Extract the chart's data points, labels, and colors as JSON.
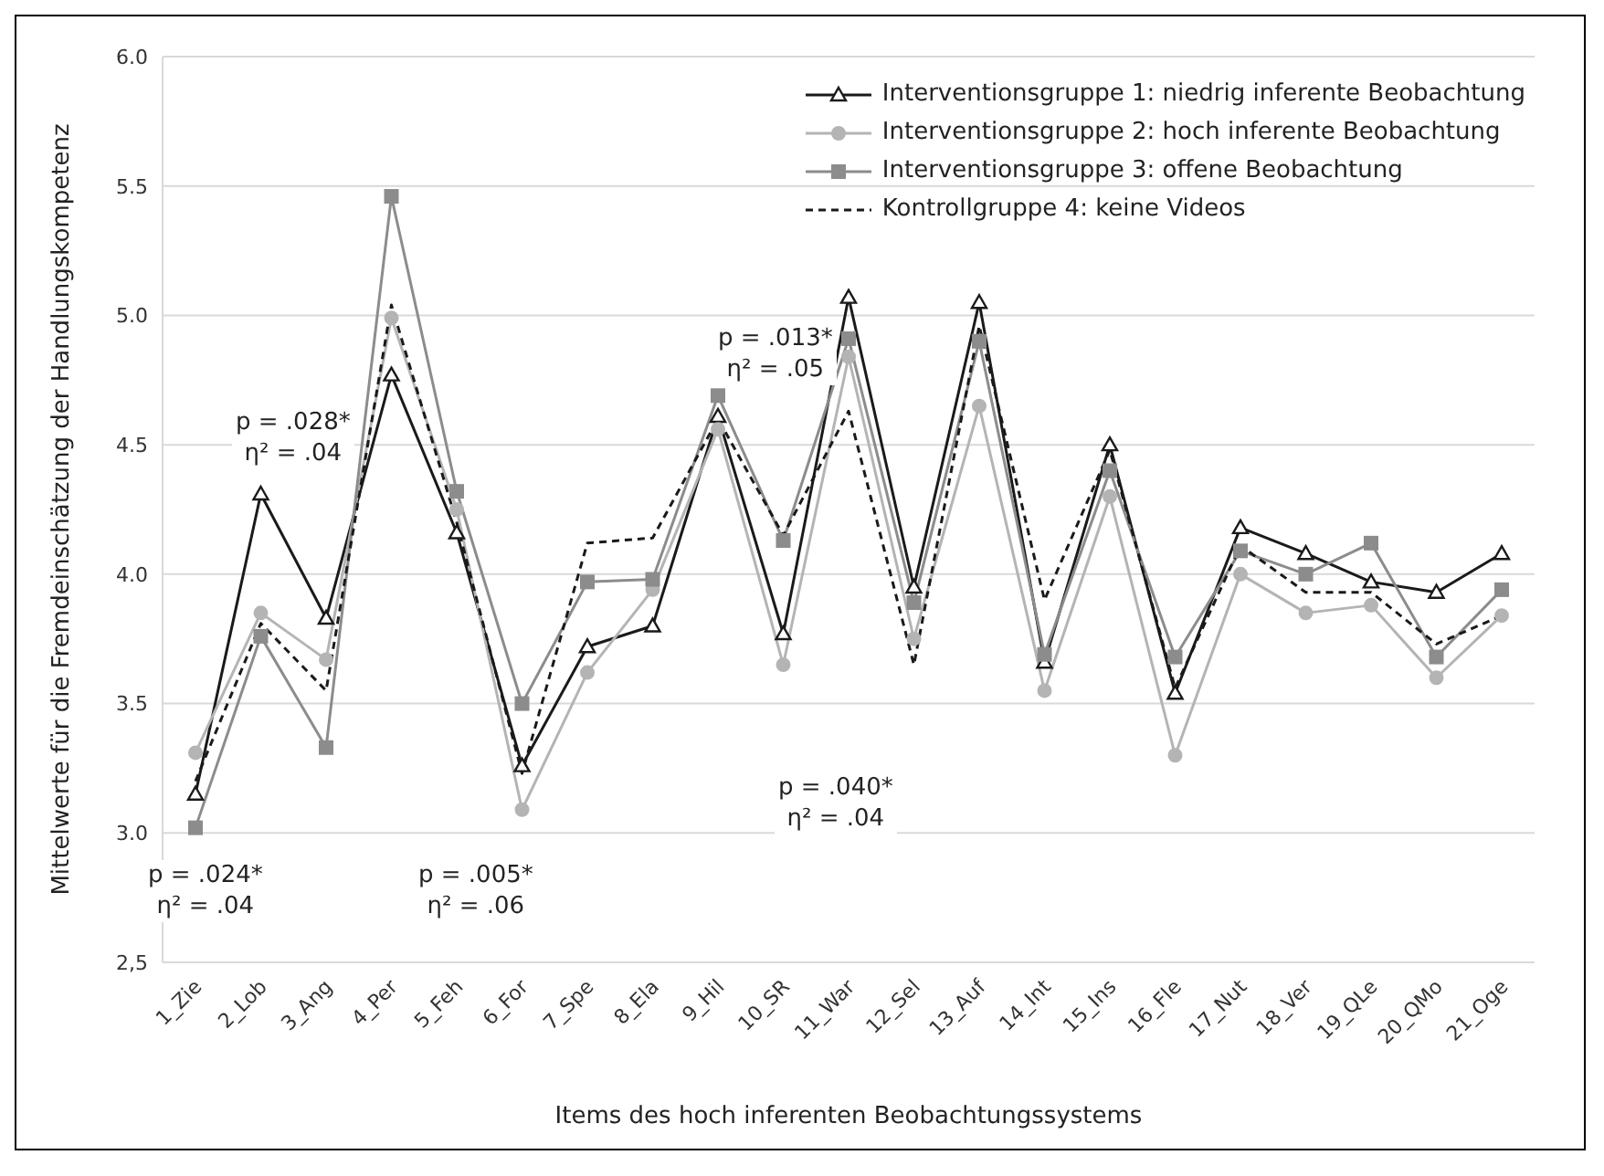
{
  "chart_data": {
    "type": "line",
    "xlabel": "Items des hoch inferenten Beobachtungssystems",
    "ylabel": "Mittelwerte für die Fremdeinschätzung der Handlungskompetenz",
    "categories": [
      "1_Zie",
      "2_Lob",
      "3_Ang",
      "4_Per",
      "5_Feh",
      "6_For",
      "7_Spe",
      "8_Ela",
      "9_Hil",
      "10_SR",
      "11_War",
      "12_Sel",
      "13_Auf",
      "14_Int",
      "15_Ins",
      "16_Fle",
      "17_Nut",
      "18_Ver",
      "19_QLe",
      "20_QMo",
      "21_Oge"
    ],
    "series": [
      {
        "name": "Interventionsgruppe 1: niedrig inferente Beobachtung",
        "color": "#1a1a1a",
        "marker": "triangle",
        "line_style": "solid",
        "values": [
          3.15,
          4.31,
          3.83,
          4.77,
          4.16,
          3.26,
          3.72,
          3.8,
          4.61,
          3.77,
          5.07,
          3.95,
          5.05,
          3.66,
          4.5,
          3.54,
          4.18,
          4.08,
          3.97,
          3.93,
          4.08
        ]
      },
      {
        "name": "Interventionsgruppe 2: hoch inferente Beobachtung",
        "color": "#b4b4b4",
        "marker": "circle",
        "line_style": "solid",
        "values": [
          3.31,
          3.85,
          3.67,
          4.99,
          4.25,
          3.09,
          3.62,
          3.94,
          4.56,
          3.65,
          4.84,
          3.75,
          4.65,
          3.55,
          4.3,
          3.3,
          4.0,
          3.85,
          3.88,
          3.6,
          3.84
        ]
      },
      {
        "name": "Interventionsgruppe 3: offene Beobachtung",
        "color": "#8c8c8c",
        "marker": "square",
        "line_style": "solid",
        "values": [
          3.02,
          3.76,
          3.33,
          5.46,
          4.32,
          3.5,
          3.97,
          3.98,
          4.69,
          4.13,
          4.91,
          3.89,
          4.9,
          3.69,
          4.4,
          3.68,
          4.09,
          4.0,
          4.12,
          3.68,
          3.94
        ]
      },
      {
        "name": "Kontrollgruppe 4: keine Videos",
        "color": "#1a1a1a",
        "marker": "none",
        "line_style": "dashed",
        "values": [
          3.2,
          3.81,
          3.55,
          5.04,
          4.2,
          3.23,
          4.12,
          4.14,
          4.6,
          4.15,
          4.63,
          3.65,
          4.96,
          3.9,
          4.48,
          3.56,
          4.11,
          3.93,
          3.93,
          3.73,
          3.84
        ]
      }
    ],
    "ylim": [
      2.5,
      6.0
    ],
    "yticks": [
      {
        "value": 2.5,
        "label": "2,5"
      },
      {
        "value": 3.0,
        "label": "3.0"
      },
      {
        "value": 3.5,
        "label": "3.5"
      },
      {
        "value": 4.0,
        "label": "4.0"
      },
      {
        "value": 4.5,
        "label": "4.5"
      },
      {
        "value": 5.0,
        "label": "5.0"
      },
      {
        "value": 5.5,
        "label": "5.5"
      },
      {
        "value": 6.0,
        "label": "6.0"
      }
    ],
    "grid": "y",
    "legend": "top right",
    "annotations": [
      "p = .024*\nη² = .04",
      "p = .028*\nη² = .04",
      "p = .005*\nη² = .06",
      "p = .013*\nη² = .05",
      "p = .040*\nη² = .04"
    ]
  }
}
